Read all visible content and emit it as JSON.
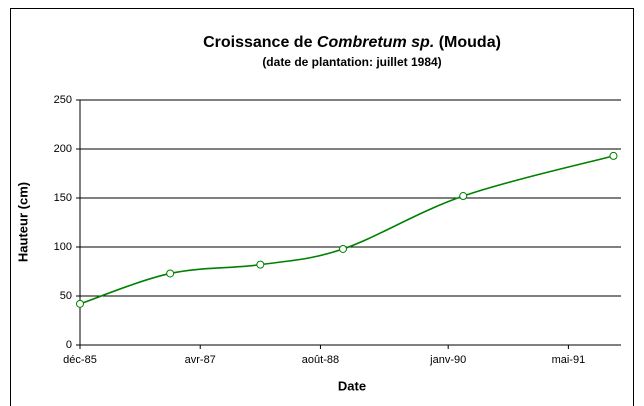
{
  "chart_data": {
    "type": "line",
    "title": [
      "Croissance de",
      "Combretum sp.",
      "(Mouda)"
    ],
    "subtitle": "(date de plantation: juillet 1984)",
    "x_label": "Date",
    "y_label": "Hauteur (cm)",
    "x": [
      "1985-12",
      "1986-12",
      "1987-12",
      "1988-11",
      "1990-03",
      "1991-11"
    ],
    "series": [
      {
        "name": "Hauteur",
        "color": "#008000",
        "values": [
          42,
          73,
          82,
          98,
          152,
          193
        ]
      }
    ],
    "xlim": [
      "1985-12",
      "1991-12"
    ],
    "xticks": [
      {
        "value": "1985-12",
        "label": "déc-85"
      },
      {
        "value": "1987-04",
        "label": "avr-87"
      },
      {
        "value": "1988-08",
        "label": "août-88"
      },
      {
        "value": "1990-01",
        "label": "janv-90"
      },
      {
        "value": "1991-05",
        "label": "mai-91"
      }
    ],
    "ylim": [
      0,
      250
    ],
    "yticks": [
      0,
      50,
      100,
      150,
      200,
      250
    ],
    "grid": true
  }
}
